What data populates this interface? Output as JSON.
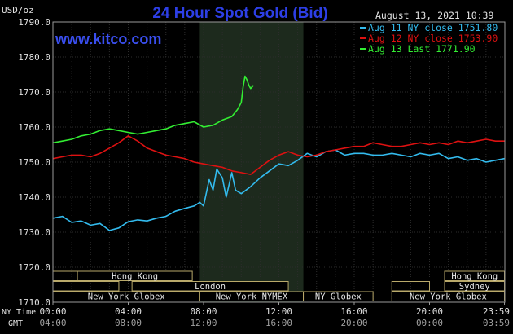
{
  "chart_data": {
    "type": "line",
    "title": "24 Hour Spot Gold (Bid)",
    "ylabel": "USD/oz",
    "watermark": "www.kitco.com",
    "timestamp": "August 13, 2021 10:39",
    "ylim": [
      1710,
      1790
    ],
    "xlim": [
      0,
      24
    ],
    "yticks": [
      "1790.0",
      "1780.0",
      "1770.0",
      "1760.0",
      "1750.0",
      "1740.0",
      "1730.0",
      "1720.0",
      "1710.0"
    ],
    "y_tick_values": [
      1790,
      1780,
      1770,
      1760,
      1750,
      1740,
      1730,
      1720,
      1710
    ],
    "x_row_labels": [
      "NY Time",
      "GMT"
    ],
    "xticks_ny": [
      "00:00",
      "04:00",
      "08:00",
      "12:00",
      "16:00",
      "20:00",
      "23:59"
    ],
    "xticks_gmt": [
      "04:00",
      "08:00",
      "12:00",
      "16:00",
      "20:00",
      "00:00",
      "03:59"
    ],
    "xtick_hours": [
      0,
      4,
      8,
      12,
      16,
      20,
      23.98
    ],
    "shaded_region_hours": [
      7.8,
      13.3
    ],
    "grid": true,
    "legend_position": "top-right",
    "series": [
      {
        "name": "Aug 11 NY close 1751.80",
        "color": "#33bbee",
        "x": [
          0,
          0.5,
          1,
          1.5,
          2,
          2.5,
          3,
          3.5,
          4,
          4.5,
          5,
          5.5,
          6,
          6.5,
          7,
          7.5,
          7.8,
          8,
          8.1,
          8.3,
          8.5,
          8.7,
          9,
          9.2,
          9.5,
          9.7,
          10,
          10.5,
          11,
          11.5,
          12,
          12.5,
          13,
          13.5,
          14,
          14.5,
          15,
          15.5,
          16,
          16.5,
          17,
          17.5,
          18,
          18.5,
          19,
          19.5,
          20,
          20.5,
          21,
          21.5,
          22,
          22.5,
          23,
          23.5,
          23.98
        ],
        "values": [
          1734.0,
          1734.5,
          1732.8,
          1733.2,
          1732.0,
          1732.5,
          1730.5,
          1731.2,
          1733.0,
          1733.5,
          1733.2,
          1734.0,
          1734.5,
          1736.0,
          1736.8,
          1737.5,
          1738.5,
          1737.5,
          1740.0,
          1745.0,
          1742.0,
          1748.0,
          1745.5,
          1740.0,
          1747.0,
          1742.0,
          1741.0,
          1743.0,
          1745.5,
          1747.5,
          1749.5,
          1749.0,
          1750.5,
          1752.5,
          1751.5,
          1753.0,
          1753.5,
          1752.0,
          1752.5,
          1752.5,
          1752.0,
          1752.0,
          1752.5,
          1752.0,
          1751.5,
          1752.5,
          1752.0,
          1752.5,
          1751.0,
          1751.5,
          1750.5,
          1751.0,
          1750.0,
          1750.5,
          1751.0
        ]
      },
      {
        "name": "Aug 12 NY close 1753.90",
        "color": "#dd1111",
        "x": [
          0,
          0.5,
          1,
          1.5,
          2,
          2.5,
          3,
          3.5,
          4,
          4.5,
          5,
          5.5,
          6,
          6.5,
          7,
          7.5,
          8,
          8.5,
          9,
          9.5,
          10,
          10.5,
          11,
          11.5,
          12,
          12.5,
          13,
          13.5,
          14,
          14.5,
          15,
          15.5,
          16,
          16.5,
          17,
          17.5,
          18,
          18.5,
          19,
          19.5,
          20,
          20.5,
          21,
          21.5,
          22,
          22.5,
          23,
          23.5,
          23.98
        ],
        "values": [
          1751.0,
          1751.5,
          1752.0,
          1752.0,
          1751.5,
          1752.5,
          1754.0,
          1755.5,
          1757.5,
          1756.0,
          1754.0,
          1753.0,
          1752.0,
          1751.5,
          1751.0,
          1750.0,
          1749.5,
          1749.0,
          1748.5,
          1747.5,
          1747.0,
          1746.5,
          1748.5,
          1750.5,
          1752.0,
          1753.0,
          1752.0,
          1751.5,
          1752.0,
          1753.0,
          1753.5,
          1754.0,
          1754.5,
          1754.5,
          1755.5,
          1755.0,
          1754.5,
          1754.5,
          1755.0,
          1755.5,
          1755.0,
          1755.5,
          1755.0,
          1756.0,
          1755.5,
          1756.0,
          1756.5,
          1756.0,
          1756.0
        ]
      },
      {
        "name": "Aug 13 Last 1771.90",
        "color": "#33ee33",
        "x": [
          0,
          0.5,
          1,
          1.5,
          2,
          2.5,
          3,
          3.5,
          4,
          4.5,
          5,
          5.5,
          6,
          6.5,
          7,
          7.5,
          8,
          8.5,
          9,
          9.5,
          9.8,
          10,
          10.1,
          10.2,
          10.3,
          10.4,
          10.5,
          10.65
        ],
        "values": [
          1755.5,
          1756.0,
          1756.5,
          1757.5,
          1758.0,
          1759.0,
          1759.5,
          1759.0,
          1758.5,
          1758.0,
          1758.5,
          1759.0,
          1759.5,
          1760.5,
          1761.0,
          1761.5,
          1760.0,
          1760.5,
          1762.0,
          1763.0,
          1765.0,
          1767.0,
          1771.5,
          1774.5,
          1773.5,
          1772.0,
          1771.0,
          1771.9
        ]
      }
    ],
    "sessions": [
      {
        "label": "Hong Kong",
        "row": 0,
        "start": 1.3,
        "end": 7.4
      },
      {
        "label": "Hong Kong",
        "row": 0,
        "start": 20.8,
        "end": 23.98
      },
      {
        "label": "London",
        "row": 1,
        "start": 4.2,
        "end": 12.5
      },
      {
        "label": "Sydney",
        "row": 1,
        "start": 20.8,
        "end": 23.98
      },
      {
        "label": "New York Globex",
        "row": 2,
        "start": 0,
        "end": 7.8
      },
      {
        "label": "New York NYMEX",
        "row": 2,
        "start": 7.8,
        "end": 13.3
      },
      {
        "label": "NY Globex",
        "row": 2,
        "start": 13.3,
        "end": 17.0
      },
      {
        "label": "New York Globex",
        "row": 2,
        "start": 18.0,
        "end": 23.98
      }
    ],
    "session_fill_rows": [
      {
        "row": 0,
        "start": 0,
        "end": 1.3
      },
      {
        "row": 1,
        "start": 0,
        "end": 3.5
      },
      {
        "row": 1,
        "start": 18.0,
        "end": 20.0
      }
    ]
  }
}
